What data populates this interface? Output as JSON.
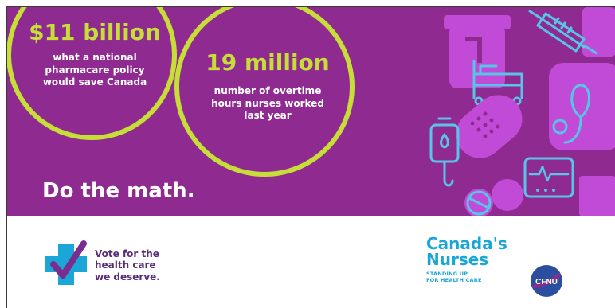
{
  "stats": [
    {
      "value": "$11 billion",
      "description": "what a national\npharmacare policy\nwould save Canada"
    },
    {
      "value": "19 million",
      "description": "number of overtime\nhours nurses worked\nlast year"
    }
  ],
  "tagline": "Do the math.",
  "vote": {
    "text": "Vote for the\nhealth care\nwe deserve."
  },
  "brand": {
    "name": "Canada's\nNurses",
    "tagline": "STANDING UP\nFOR HEALTH CARE",
    "badge": "CFNU"
  },
  "colors": {
    "banner": "#8f2a90",
    "accent": "#c7dd38",
    "icon_line": "#58c4e6",
    "icon_fill": "#c14ad6",
    "brand": "#1aa7d8",
    "vote_text": "#5a2d7a"
  },
  "icons": [
    "syringe-icon",
    "pill-bottle-icon",
    "hospital-bed-icon",
    "stethoscope-icon",
    "bandage-icon",
    "iv-drip-icon",
    "heart-monitor-icon",
    "pills-icon",
    "medical-cross-icon"
  ]
}
